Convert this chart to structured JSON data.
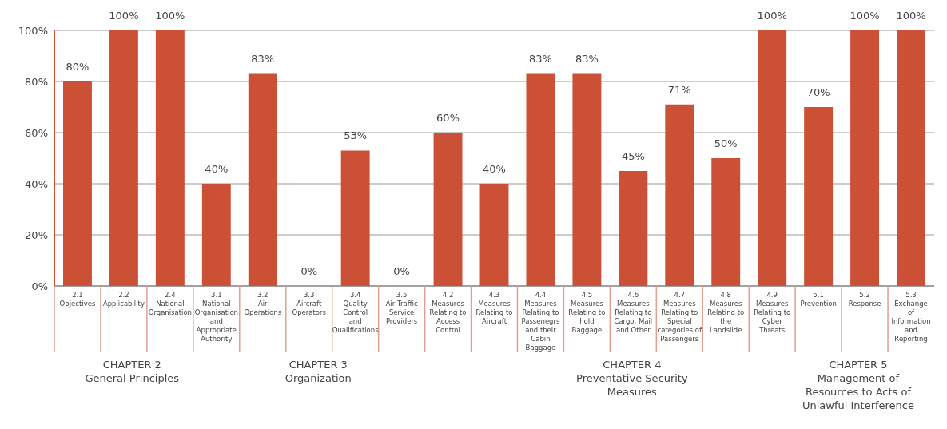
{
  "chart_data": {
    "type": "bar",
    "categories": [
      "2.1\nObjectives",
      "2.2\nApplicability",
      "2.4\nNational\nOrganisation",
      "3.1\nNational\nOrganisation\nand\nAppropriate\nAuthority",
      "3.2\nAir\nOperations",
      "3.3\nAircraft\nOperators",
      "3.4\nQuality\nControl\nand\nQualifications",
      "3.5\nAir Traffic\nService\nProviders",
      "4.2\nMeasures\nRelating to\nAccess\nControl",
      "4.3\nMeasures\nRelating to\nAircraft",
      "4.4\nMeasures\nRelating to\nPassenegrs\nand their\nCabin\nBaggage",
      "4.5\nMeasures\nRelating to\nhold\nBaggage",
      "4.6\nMeasures\nRelating to\nCargo, Mail\nand Other",
      "4.7\nMeasures\nRelating to\nSpecial\ncategories of\nPassengers",
      "4.8\nMeasures\nRelating to\nthe\nLandslide",
      "4.9\nMeasures\nRelating to\nCyber\nThreats",
      "5.1\nPrevention",
      "5.2\nResponse",
      "5.3\nExchange\nof\nInformation\nand\nReporting"
    ],
    "values": [
      80,
      100,
      100,
      40,
      83,
      0,
      53,
      0,
      60,
      40,
      83,
      83,
      45,
      71,
      50,
      100,
      70,
      100,
      100
    ],
    "value_labels": [
      "80%",
      "100%",
      "100%",
      "40%",
      "83%",
      "0%",
      "53%",
      "0%",
      "60%",
      "40%",
      "83%",
      "83%",
      "45%",
      "71%",
      "50%",
      "100%",
      "70%",
      "100%",
      "100%"
    ],
    "color": "#cc5036",
    "ylim": [
      0,
      100
    ],
    "yticks": [
      {
        "value": 0,
        "label": "0%"
      },
      {
        "value": 20,
        "label": "20%"
      },
      {
        "value": 40,
        "label": "40%"
      },
      {
        "value": 60,
        "label": "60%"
      },
      {
        "value": 80,
        "label": "80%"
      },
      {
        "value": 100,
        "label": "100%"
      }
    ],
    "grid": "y",
    "annotations": [
      "CHAPTER 2\nGeneral Principles",
      "CHAPTER 3\nOrganization",
      "CHAPTER 4\nPreventative Security Measures",
      "CHAPTER 5\nManagement of\nResources to Acts of\nUnlawful Interference"
    ]
  }
}
